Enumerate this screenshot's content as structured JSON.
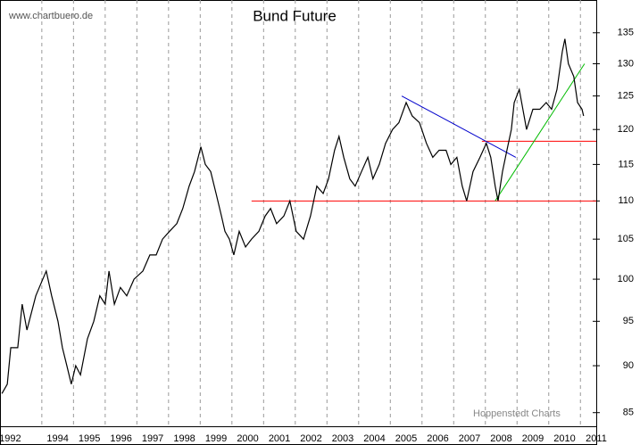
{
  "chart_data": {
    "type": "line",
    "title": "Bund Future",
    "source": "www.chartbuero.de",
    "credit": "Hoppenstedt Charts",
    "log_scale": true,
    "grid": true,
    "xlim": [
      1992.68,
      2011.5
    ],
    "ylim": [
      83.6,
      140.5
    ],
    "yticks": [
      85,
      90,
      95,
      100,
      105,
      110,
      115,
      120,
      125,
      130,
      135
    ],
    "xticks": [
      {
        "value": 1992.5,
        "label": "1992"
      },
      1994,
      1995,
      1996,
      1997,
      1998,
      1999,
      2000,
      2001,
      2002,
      2003,
      2004,
      2005,
      2006,
      2007,
      2008,
      2009,
      2010,
      2011
    ],
    "series": [
      {
        "color": "#000000",
        "x": [
          1992.74,
          1992.91,
          1993.02,
          1993.24,
          1993.38,
          1993.53,
          1993.81,
          1994.03,
          1994.14,
          1994.31,
          1994.51,
          1994.65,
          1994.79,
          1994.93,
          1995.07,
          1995.22,
          1995.44,
          1995.64,
          1995.83,
          1996.0,
          1996.12,
          1996.29,
          1996.48,
          1996.68,
          1996.91,
          1997.19,
          1997.41,
          1997.61,
          1997.81,
          1998.03,
          1998.26,
          1998.45,
          1998.65,
          1998.82,
          1999.02,
          1999.16,
          1999.33,
          1999.5,
          1999.67,
          1999.78,
          1999.92,
          2000.06,
          2000.23,
          2000.43,
          2000.62,
          2000.85,
          2001.05,
          2001.22,
          2001.41,
          2001.64,
          2001.83,
          2002.03,
          2002.26,
          2002.48,
          2002.68,
          2002.88,
          2003.05,
          2003.24,
          2003.38,
          2003.53,
          2003.72,
          2003.89,
          2004.09,
          2004.29,
          2004.45,
          2004.65,
          2004.85,
          2005.07,
          2005.27,
          2005.5,
          2005.69,
          2005.92,
          2006.14,
          2006.34,
          2006.54,
          2006.76,
          2006.91,
          2007.1,
          2007.27,
          2007.41,
          2007.61,
          2007.83,
          2008.03,
          2008.17,
          2008.31,
          2008.4,
          2008.54,
          2008.68,
          2008.82,
          2008.91,
          2009.07,
          2009.3,
          2009.5,
          2009.72,
          2009.92,
          2010.09,
          2010.26,
          2010.43,
          2010.51,
          2010.62,
          2010.79,
          2010.91,
          2011.05,
          2011.1
        ],
        "values": [
          87,
          88,
          92,
          92,
          97,
          94,
          98,
          100,
          101,
          98,
          95,
          92,
          90,
          88,
          90,
          89,
          93,
          95,
          98,
          97,
          101,
          97,
          99,
          98,
          100,
          101,
          103,
          103,
          105,
          106,
          107,
          109,
          112,
          114,
          117.5,
          115,
          114,
          111,
          108,
          106,
          105,
          103,
          106,
          104,
          105,
          106,
          108,
          109,
          107,
          108,
          110,
          106,
          105,
          108,
          112,
          111,
          113,
          117,
          119,
          116,
          113,
          112,
          114,
          116,
          113,
          115,
          118,
          120,
          121,
          124,
          122,
          121,
          118,
          116,
          117,
          117,
          115,
          116,
          112,
          110,
          114,
          116,
          118,
          116,
          112,
          110,
          114,
          117,
          120,
          124,
          126,
          120,
          123,
          123,
          124,
          123,
          126,
          132,
          134,
          130,
          128,
          124,
          123,
          122
        ]
      }
    ],
    "lines": [
      {
        "color": "#ff0000",
        "x": [
          2000.62,
          2011.5
        ],
        "values": [
          110,
          110
        ]
      },
      {
        "color": "#ff0000",
        "x": [
          2007.89,
          2011.5
        ],
        "values": [
          118.3,
          118.3
        ]
      },
      {
        "color": "#0000cc",
        "x": [
          2005.36,
          2008.96
        ],
        "values": [
          125,
          116
        ]
      },
      {
        "color": "#00bb00",
        "x": [
          2008.31,
          2011.13
        ],
        "values": [
          110,
          130
        ]
      }
    ]
  }
}
